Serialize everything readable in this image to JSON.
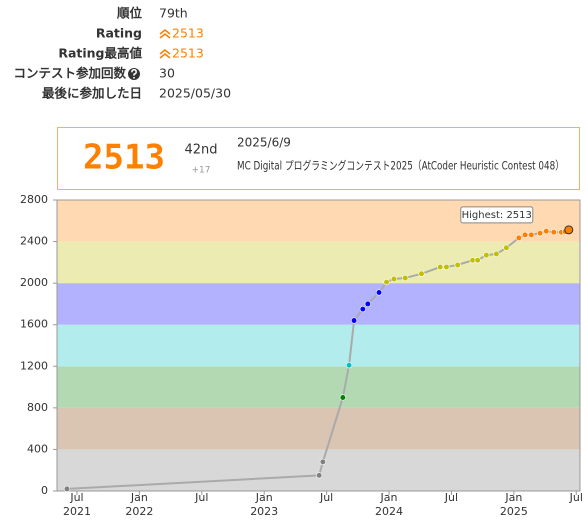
{
  "profile": {
    "rating_color": "#ff8000",
    "rows": [
      {
        "label": "順位",
        "value": "79th"
      },
      {
        "label": "Rating",
        "value": "2513"
      },
      {
        "label": "Rating最高値",
        "value": "2513"
      },
      {
        "label": "コンテスト参加回数",
        "value": "30"
      },
      {
        "label": "最後に参加した日",
        "value": "2025/05/30"
      }
    ]
  },
  "status": {
    "rating": "2513",
    "rank": "42nd",
    "diff": "+17",
    "date": "2025/6/9",
    "contest": "MC Digital プログラミングコンテスト2025（AtCoder Heuristic Contest 048）"
  },
  "chart_data": {
    "type": "line",
    "annotation": "Highest: 2513",
    "x": [
      2021.42,
      2023.44,
      2023.47,
      2023.63,
      2023.68,
      2023.72,
      2023.79,
      2023.83,
      2023.92,
      2023.98,
      2024.04,
      2024.13,
      2024.26,
      2024.41,
      2024.46,
      2024.55,
      2024.67,
      2024.71,
      2024.78,
      2024.86,
      2024.94,
      2025.04,
      2025.09,
      2025.14,
      2025.21,
      2025.26,
      2025.32,
      2025.38,
      2025.41,
      2025.44
    ],
    "values": [
      20,
      150,
      280,
      900,
      1210,
      1640,
      1750,
      1800,
      1910,
      2010,
      2040,
      2050,
      2090,
      2155,
      2155,
      2175,
      2220,
      2220,
      2270,
      2280,
      2340,
      2435,
      2465,
      2465,
      2480,
      2500,
      2490,
      2490,
      2496,
      2513
    ],
    "line_color": "#aaaaaa",
    "bands": [
      {
        "from": 0,
        "to": 400,
        "color": "#d8d8d8",
        "point": "#808080"
      },
      {
        "from": 400,
        "to": 800,
        "color": "#d9c5b2",
        "point": "#804000"
      },
      {
        "from": 800,
        "to": 1200,
        "color": "#b2d9b2",
        "point": "#008000"
      },
      {
        "from": 1200,
        "to": 1600,
        "color": "#b2ecec",
        "point": "#00c0c0"
      },
      {
        "from": 1600,
        "to": 2000,
        "color": "#b2b2ff",
        "point": "#0000ff"
      },
      {
        "from": 2000,
        "to": 2400,
        "color": "#ececb2",
        "point": "#c0c000"
      },
      {
        "from": 2400,
        "to": 2800,
        "color": "#ffd9b2",
        "point": "#ff8000"
      }
    ],
    "xlim": [
      2021.34,
      2025.53
    ],
    "ylim": [
      0,
      2800
    ],
    "yticks": [
      0,
      400,
      800,
      1200,
      1600,
      2000,
      2400,
      2800
    ],
    "xticks": [
      {
        "value": 2021.5,
        "label": "Jul"
      },
      {
        "value": 2022,
        "label": "Jan"
      },
      {
        "value": 2022.5,
        "label": "Jul"
      },
      {
        "value": 2023,
        "label": "Jan"
      },
      {
        "value": 2023.5,
        "label": "Jul"
      },
      {
        "value": 2024,
        "label": "Jan"
      },
      {
        "value": 2024.5,
        "label": "Jul"
      },
      {
        "value": 2025,
        "label": "Jan"
      },
      {
        "value": 2025.5,
        "label": "Jul"
      }
    ],
    "xtick_years": [
      {
        "value": 2021.5,
        "label": "2021"
      },
      {
        "value": 2022,
        "label": "2022"
      },
      {
        "value": 2023,
        "label": "2023"
      },
      {
        "value": 2024,
        "label": "2024"
      },
      {
        "value": 2025,
        "label": "2025"
      }
    ]
  }
}
